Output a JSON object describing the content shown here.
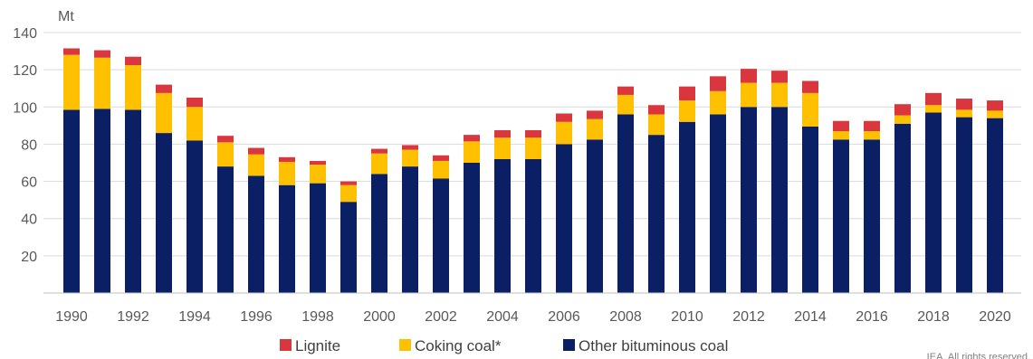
{
  "chart_data": {
    "type": "bar",
    "stacked": true,
    "unit_label": "Mt",
    "credit": "IEA. All rights reserved.",
    "ylim": [
      0,
      140
    ],
    "yticks": [
      20,
      40,
      60,
      80,
      100,
      120,
      140
    ],
    "grid": true,
    "legend_position": "bottom",
    "categories": [
      "1990",
      "1991",
      "1992",
      "1993",
      "1994",
      "1995",
      "1996",
      "1997",
      "1998",
      "1999",
      "2000",
      "2001",
      "2002",
      "2003",
      "2004",
      "2005",
      "2006",
      "2007",
      "2008",
      "2009",
      "2010",
      "2011",
      "2012",
      "2013",
      "2014",
      "2015",
      "2016",
      "2017",
      "2018",
      "2019",
      "2020"
    ],
    "xtick_labels": [
      "1990",
      "1992",
      "1994",
      "1996",
      "1998",
      "2000",
      "2002",
      "2004",
      "2006",
      "2008",
      "2010",
      "2012",
      "2014",
      "2016",
      "2018",
      "2020"
    ],
    "series": [
      {
        "name": "Other bituminous coal",
        "color": "#0b1f65",
        "values": [
          98.5,
          99,
          98.5,
          86,
          82,
          68,
          63,
          58,
          59,
          49,
          64,
          68,
          61.5,
          70,
          72,
          72,
          80,
          82.5,
          96,
          85,
          92,
          96,
          100,
          100,
          89.5,
          82.5,
          82.5,
          91,
          97,
          94.5,
          94
        ]
      },
      {
        "name": "Coking coal*",
        "color": "#ffc000",
        "values": [
          29.5,
          27.5,
          24,
          21.5,
          18,
          13,
          11.5,
          12.5,
          10,
          9,
          11,
          9,
          9.5,
          11.5,
          11.5,
          11.5,
          12,
          11,
          10.5,
          11,
          11.5,
          12.5,
          13,
          13,
          18,
          4.5,
          4.5,
          4.5,
          4,
          4,
          4
        ]
      },
      {
        "name": "Lignite",
        "color": "#d9363e",
        "values": [
          3.5,
          4,
          4.5,
          4.5,
          5,
          3.5,
          3.5,
          2.5,
          2,
          2,
          2.5,
          2.5,
          3,
          3.5,
          4,
          4,
          4.5,
          4.5,
          4.5,
          5,
          7.5,
          8,
          7.5,
          6.5,
          6.5,
          5.5,
          5.5,
          6,
          6.5,
          6,
          5.5
        ]
      }
    ],
    "legend_order": [
      "Lignite",
      "Coking coal*",
      "Other bituminous coal"
    ]
  }
}
